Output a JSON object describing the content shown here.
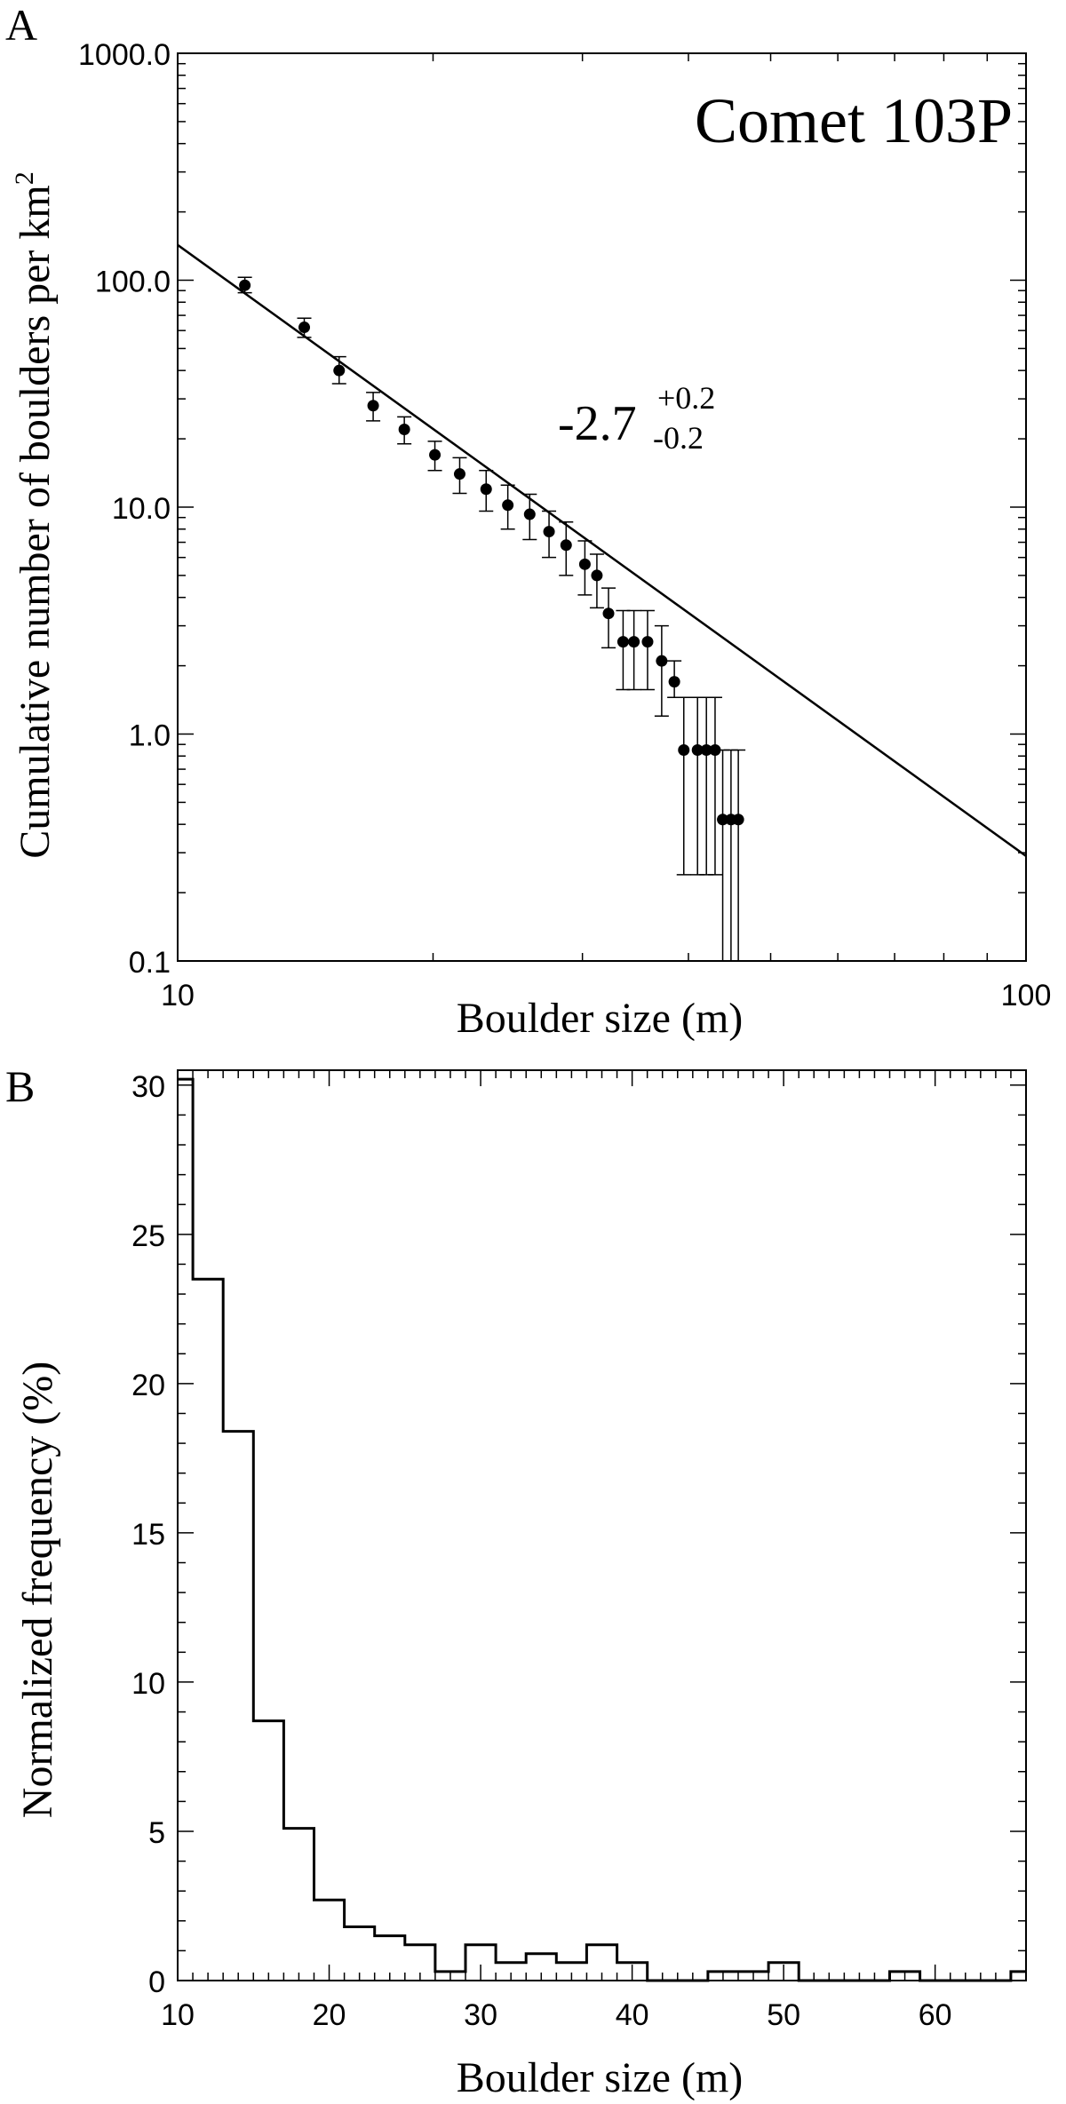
{
  "chart_data": [
    {
      "panel_label": "A",
      "type": "scatter",
      "title": "Comet 103P",
      "xlabel": "Boulder size (m)",
      "ylabel": "Cumulative number of boulders per km",
      "ylabel_superscript": "2",
      "x_scale": "log",
      "y_scale": "log",
      "xlim": [
        10,
        100
      ],
      "ylim": [
        0.1,
        1000
      ],
      "x_ticks": [
        10,
        100
      ],
      "x_tick_labels": [
        "10",
        "100"
      ],
      "y_ticks": [
        0.1,
        1,
        10,
        100,
        1000
      ],
      "y_tick_labels": [
        "0.1",
        "1.0",
        "10.0",
        "100.0",
        "1000.0"
      ],
      "fit_annotation": {
        "value": "-2.7",
        "plus": "+0.2",
        "minus": "-0.2"
      },
      "fit_line": {
        "slope": -2.7,
        "points": [
          [
            10,
            143
          ],
          [
            100,
            0.29
          ]
        ]
      },
      "series": [
        {
          "x": [
            12.0,
            14.1,
            15.5,
            17.0,
            18.5,
            20.1,
            21.5,
            23.1,
            24.5,
            26.0,
            27.4,
            28.7,
            30.2,
            31.2,
            32.2,
            33.5,
            34.5,
            35.8,
            37.2,
            38.5,
            39.5,
            41.0,
            42.0,
            43.0,
            43.9,
            44.9,
            45.8
          ],
          "y": [
            95,
            62,
            40,
            28,
            22,
            17,
            14,
            12,
            10.2,
            9.3,
            7.8,
            6.8,
            5.6,
            5.0,
            3.4,
            2.55,
            2.55,
            2.55,
            2.1,
            1.7,
            0.85,
            0.85,
            0.85,
            0.85,
            0.42,
            0.42,
            0.42
          ],
          "y_low": [
            88,
            56,
            35,
            24,
            19,
            14.5,
            11.5,
            9.6,
            8.0,
            7.2,
            6.0,
            5.0,
            4.1,
            3.6,
            2.4,
            1.57,
            1.57,
            1.57,
            1.2,
            1.45,
            0.24,
            0.24,
            0.24,
            0.24,
            0.05,
            0.05,
            0.05
          ],
          "y_high": [
            103,
            68,
            46,
            32,
            25,
            19.5,
            16.5,
            14.5,
            12.5,
            11.4,
            9.6,
            8.6,
            7.1,
            6.2,
            4.4,
            3.5,
            3.5,
            3.5,
            3.0,
            2.1,
            1.45,
            1.45,
            1.45,
            1.45,
            0.85,
            0.85,
            0.85
          ]
        }
      ]
    },
    {
      "panel_label": "B",
      "type": "bar",
      "histogram": true,
      "xlabel": "Boulder size (m)",
      "ylabel": "Normalized frequency (%)",
      "xlim": [
        10,
        66
      ],
      "ylim": [
        0,
        30.5
      ],
      "x_ticks": [
        10,
        20,
        30,
        40,
        50,
        60
      ],
      "y_ticks": [
        0,
        5,
        10,
        15,
        20,
        25,
        30
      ],
      "bin_width": 2,
      "bin_starts": [
        9,
        11,
        13,
        15,
        17,
        19,
        21,
        23,
        25,
        27,
        29,
        31,
        33,
        35,
        37,
        39,
        41,
        43,
        45,
        47,
        49,
        51,
        53,
        55,
        57,
        59,
        61,
        63,
        65
      ],
      "values": [
        30.2,
        23.5,
        18.4,
        8.7,
        5.1,
        2.7,
        1.8,
        1.5,
        1.2,
        0.3,
        1.2,
        0.6,
        0.9,
        0.6,
        1.2,
        0.6,
        0.0,
        0.0,
        0.3,
        0.3,
        0.6,
        0.0,
        0.0,
        0.0,
        0.3,
        0.0,
        0.0,
        0.0,
        0.3
      ]
    }
  ]
}
